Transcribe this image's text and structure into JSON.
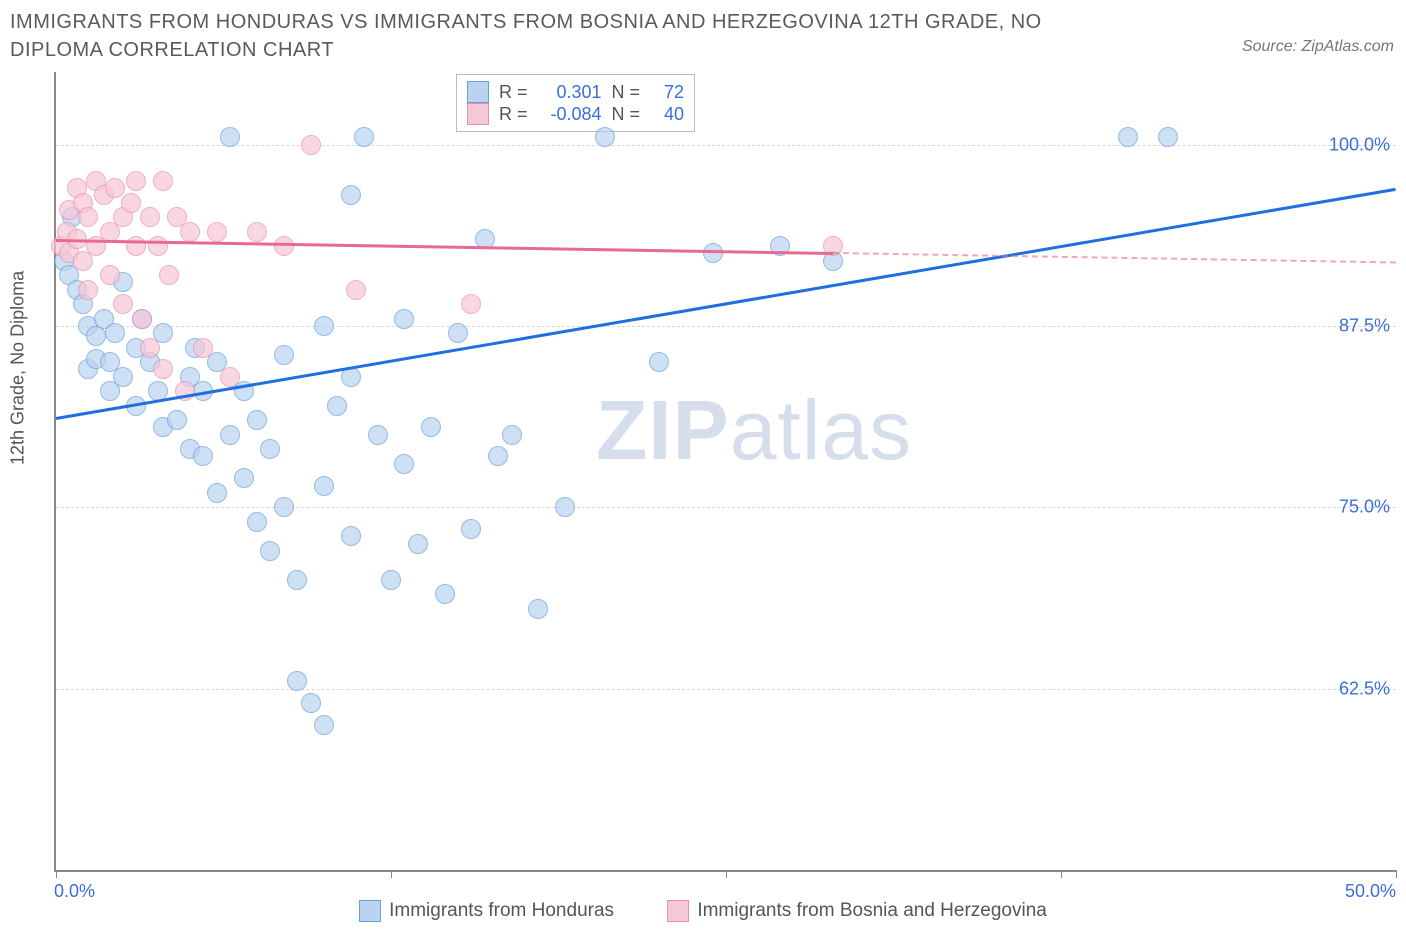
{
  "title": "IMMIGRANTS FROM HONDURAS VS IMMIGRANTS FROM BOSNIA AND HERZEGOVINA 12TH GRADE, NO DIPLOMA CORRELATION CHART",
  "source": "Source: ZipAtlas.com",
  "watermark_a": "ZIP",
  "watermark_b": "atlas",
  "chart": {
    "type": "scatter",
    "background_color": "#ffffff",
    "grid_color": "#d8d8d8",
    "axis_color": "#888888",
    "xlim": [
      0,
      50
    ],
    "ylim": [
      50,
      105
    ],
    "x_min_label": "0.0%",
    "x_max_label": "50.0%",
    "xtick_positions": [
      0,
      12.5,
      25,
      37.5,
      50
    ],
    "ytick_positions": [
      62.5,
      75.0,
      87.5,
      100.0
    ],
    "ytick_labels": [
      "62.5%",
      "75.0%",
      "87.5%",
      "100.0%"
    ],
    "ylabel": "12th Grade, No Diploma",
    "tick_label_color": "#3a6fd8",
    "axis_label_color": "#555555",
    "marker_radius": 10,
    "marker_opacity": 0.35,
    "series_a": {
      "name": "Immigrants from Honduras",
      "fill": "#b9d3f0",
      "stroke": "#6a9edc",
      "trend_color": "#1f6fe0",
      "R": "0.301",
      "N": "72",
      "trend": {
        "x1": 0,
        "y1": 81.2,
        "x2": 50,
        "y2": 97.0,
        "extrapolate_from_x": 50
      },
      "points": [
        [
          0.3,
          92.0
        ],
        [
          0.5,
          91.0
        ],
        [
          0.6,
          95.0
        ],
        [
          0.8,
          90.0
        ],
        [
          1.0,
          89.0
        ],
        [
          1.2,
          87.5
        ],
        [
          1.2,
          84.5
        ],
        [
          1.5,
          86.8
        ],
        [
          1.5,
          85.2
        ],
        [
          1.8,
          88.0
        ],
        [
          2.0,
          85.0
        ],
        [
          2.0,
          83.0
        ],
        [
          2.2,
          87.0
        ],
        [
          2.5,
          84.0
        ],
        [
          2.5,
          90.5
        ],
        [
          3.0,
          86.0
        ],
        [
          3.0,
          82.0
        ],
        [
          3.2,
          88.0
        ],
        [
          3.5,
          85.0
        ],
        [
          3.8,
          83.0
        ],
        [
          4.0,
          80.5
        ],
        [
          4.0,
          87.0
        ],
        [
          4.5,
          81.0
        ],
        [
          5.0,
          84.0
        ],
        [
          5.0,
          79.0
        ],
        [
          5.2,
          86.0
        ],
        [
          5.5,
          78.5
        ],
        [
          5.5,
          83.0
        ],
        [
          6.0,
          76.0
        ],
        [
          6.0,
          85.0
        ],
        [
          6.5,
          80.0
        ],
        [
          6.5,
          100.5
        ],
        [
          7.0,
          77.0
        ],
        [
          7.0,
          83.0
        ],
        [
          7.5,
          74.0
        ],
        [
          7.5,
          81.0
        ],
        [
          8.0,
          79.0
        ],
        [
          8.0,
          72.0
        ],
        [
          8.5,
          85.5
        ],
        [
          8.5,
          75.0
        ],
        [
          9.0,
          70.0
        ],
        [
          9.0,
          63.0
        ],
        [
          9.5,
          61.5
        ],
        [
          10.0,
          87.5
        ],
        [
          10.0,
          76.5
        ],
        [
          10.0,
          60.0
        ],
        [
          10.5,
          82.0
        ],
        [
          11.0,
          84.0
        ],
        [
          11.0,
          73.0
        ],
        [
          11.0,
          96.5
        ],
        [
          11.5,
          100.5
        ],
        [
          12.0,
          80.0
        ],
        [
          12.5,
          70.0
        ],
        [
          13.0,
          78.0
        ],
        [
          13.0,
          88.0
        ],
        [
          13.5,
          72.5
        ],
        [
          14.0,
          80.5
        ],
        [
          14.5,
          69.0
        ],
        [
          15.0,
          87.0
        ],
        [
          15.5,
          73.5
        ],
        [
          16.0,
          93.5
        ],
        [
          16.5,
          78.5
        ],
        [
          17.0,
          80.0
        ],
        [
          18.0,
          68.0
        ],
        [
          19.0,
          75.0
        ],
        [
          20.5,
          100.5
        ],
        [
          22.5,
          85.0
        ],
        [
          24.5,
          92.5
        ],
        [
          27.0,
          93.0
        ],
        [
          29.0,
          92.0
        ],
        [
          40.0,
          100.5
        ],
        [
          41.5,
          100.5
        ]
      ]
    },
    "series_b": {
      "name": "Immigrants from Bosnia and Herzegovina",
      "fill": "#f6c7d7",
      "stroke": "#e98fb0",
      "trend_color": "#e86a93",
      "R": "-0.084",
      "N": "40",
      "trend": {
        "x1": 0,
        "y1": 93.5,
        "x2": 29,
        "y2": 92.6,
        "extrapolate_from_x": 29
      },
      "points": [
        [
          0.2,
          93.0
        ],
        [
          0.4,
          94.0
        ],
        [
          0.5,
          95.5
        ],
        [
          0.5,
          92.5
        ],
        [
          0.8,
          97.0
        ],
        [
          0.8,
          93.5
        ],
        [
          1.0,
          96.0
        ],
        [
          1.0,
          92.0
        ],
        [
          1.2,
          95.0
        ],
        [
          1.2,
          90.0
        ],
        [
          1.5,
          97.5
        ],
        [
          1.5,
          93.0
        ],
        [
          1.8,
          96.5
        ],
        [
          2.0,
          94.0
        ],
        [
          2.0,
          91.0
        ],
        [
          2.2,
          97.0
        ],
        [
          2.5,
          95.0
        ],
        [
          2.5,
          89.0
        ],
        [
          2.8,
          96.0
        ],
        [
          3.0,
          93.0
        ],
        [
          3.0,
          97.5
        ],
        [
          3.2,
          88.0
        ],
        [
          3.5,
          95.0
        ],
        [
          3.5,
          86.0
        ],
        [
          3.8,
          93.0
        ],
        [
          4.0,
          97.5
        ],
        [
          4.0,
          84.5
        ],
        [
          4.2,
          91.0
        ],
        [
          4.5,
          95.0
        ],
        [
          4.8,
          83.0
        ],
        [
          5.0,
          94.0
        ],
        [
          5.5,
          86.0
        ],
        [
          6.0,
          94.0
        ],
        [
          6.5,
          84.0
        ],
        [
          7.5,
          94.0
        ],
        [
          8.5,
          93.0
        ],
        [
          9.5,
          100.0
        ],
        [
          11.2,
          90.0
        ],
        [
          15.5,
          89.0
        ],
        [
          29.0,
          93.0
        ]
      ]
    },
    "stats_legend": {
      "R_label": "R =",
      "N_label": "N ="
    }
  }
}
